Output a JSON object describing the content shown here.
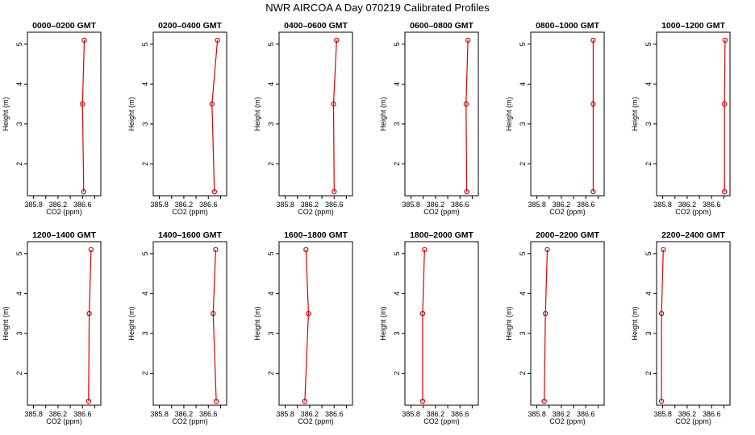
{
  "chart_data": {
    "type": "line",
    "title": "NWR AIRCOA A  Day 070219  Calibrated Profiles",
    "xlabel": "CO2 (ppm)",
    "ylabel": "Height (m)",
    "xlim": [
      385.7,
      386.9
    ],
    "ylim": [
      1.2,
      5.3
    ],
    "x_ticks": [
      "385.8",
      "386.2",
      "386.6"
    ],
    "y_ticks": [
      "2",
      "3",
      "4",
      "5"
    ],
    "heights": [
      1.3,
      3.5,
      5.1
    ],
    "line_color": "#dd0000",
    "marker_color": "#dd0000",
    "panels": [
      {
        "title": "0000–0200 GMT",
        "co2": [
          386.62,
          386.6,
          386.63
        ]
      },
      {
        "title": "0200–0400 GMT",
        "co2": [
          386.7,
          386.66,
          386.75
        ]
      },
      {
        "title": "0400–0600 GMT",
        "co2": [
          386.6,
          386.59,
          386.64
        ]
      },
      {
        "title": "0600–0800 GMT",
        "co2": [
          386.71,
          386.7,
          386.73
        ]
      },
      {
        "title": "0800–1000 GMT",
        "co2": [
          386.72,
          386.72,
          386.72
        ]
      },
      {
        "title": "1000–1200 GMT",
        "co2": [
          386.81,
          386.81,
          386.82
        ]
      },
      {
        "title": "1200–1400 GMT",
        "co2": [
          386.7,
          386.71,
          386.74
        ]
      },
      {
        "title": "1400–1600 GMT",
        "co2": [
          386.73,
          386.68,
          386.72
        ]
      },
      {
        "title": "1600–1800 GMT",
        "co2": [
          386.12,
          386.18,
          386.14
        ]
      },
      {
        "title": "1800–2000 GMT",
        "co2": [
          385.99,
          385.99,
          386.02
        ]
      },
      {
        "title": "2000–2200 GMT",
        "co2": [
          385.92,
          385.94,
          385.97
        ]
      },
      {
        "title": "2200–2400 GMT",
        "co2": [
          385.78,
          385.78,
          385.81
        ]
      }
    ]
  }
}
